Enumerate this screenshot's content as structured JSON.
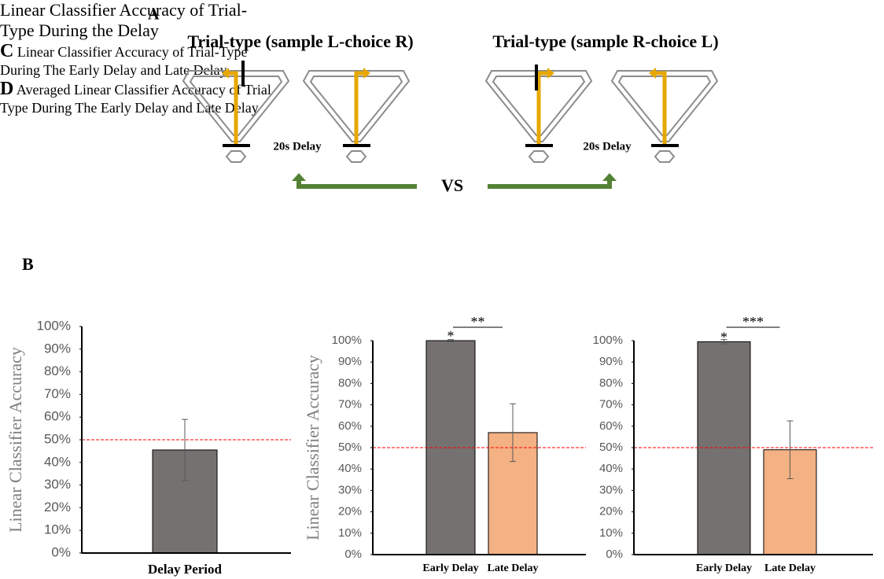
{
  "diagram": {
    "panel": "A",
    "titles": [
      "Trial-type (sample L-choice R)",
      "Trial-type (sample R-choice L)"
    ],
    "delay_labels": [
      "20s Delay",
      "20s Delay"
    ],
    "vs": "VS"
  },
  "chart_data": [
    {
      "type": "bar",
      "panel": "B",
      "title": "Linear Classifier Accuracy of Trial-Type During the Delay",
      "ylabel": "Linear Classifier Accuracy",
      "categories": [
        "Delay Period"
      ],
      "values": [
        45.5
      ],
      "errors": [
        13.5
      ],
      "colors": [
        "#767171"
      ],
      "chance_level": 50,
      "chance_color": "#ff0000",
      "ylim": [
        0,
        100
      ],
      "yticks": [
        {
          "value": 0,
          "label": "0%"
        },
        {
          "value": 10,
          "label": "10%"
        },
        {
          "value": 20,
          "label": "20%"
        },
        {
          "value": 30,
          "label": "30%"
        },
        {
          "value": 40,
          "label": "40%"
        },
        {
          "value": 50,
          "label": "50%"
        },
        {
          "value": 60,
          "label": "60%"
        },
        {
          "value": 70,
          "label": "70%"
        },
        {
          "value": 80,
          "label": "80%"
        },
        {
          "value": 90,
          "label": "90%"
        },
        {
          "value": 100,
          "label": "100%"
        }
      ]
    },
    {
      "type": "bar",
      "panel": "C",
      "title": "Linear Classifier Accuracy of Trial-Type During The Early Delay and Late Delay",
      "ylabel": "Linear Classifier Accuracy",
      "categories": [
        "Early Delay",
        "Late Delay"
      ],
      "values": [
        100,
        57
      ],
      "errors": [
        0.5,
        13.5
      ],
      "colors": [
        "#767171",
        "#f4b183"
      ],
      "chance_level": 50,
      "chance_color": "#ff0000",
      "bar_annotations": [
        "*",
        null
      ],
      "comparison_label": "**",
      "ylim": [
        0,
        100
      ],
      "yticks": [
        {
          "value": 0,
          "label": "0%"
        },
        {
          "value": 10,
          "label": "10%"
        },
        {
          "value": 20,
          "label": "20%"
        },
        {
          "value": 30,
          "label": "30%"
        },
        {
          "value": 40,
          "label": "40%"
        },
        {
          "value": 50,
          "label": "50%"
        },
        {
          "value": 60,
          "label": "60%"
        },
        {
          "value": 70,
          "label": "70%"
        },
        {
          "value": 80,
          "label": "80%"
        },
        {
          "value": 90,
          "label": "90%"
        },
        {
          "value": 100,
          "label": "100%"
        }
      ]
    },
    {
      "type": "bar",
      "panel": "D",
      "title": "Averaged Linear Classifier Accuracy of Trial Type During The Early Delay and Late Delay",
      "categories": [
        "Early Delay",
        "Late Delay"
      ],
      "values": [
        99.5,
        49
      ],
      "errors": [
        1,
        13.5
      ],
      "colors": [
        "#767171",
        "#f4b183"
      ],
      "chance_level": 50,
      "chance_color": "#ff0000",
      "bar_annotations": [
        "*",
        null
      ],
      "comparison_label": "***",
      "ylim": [
        0,
        100
      ],
      "yticks": [
        {
          "value": 0,
          "label": "0%"
        },
        {
          "value": 10,
          "label": "10%"
        },
        {
          "value": 20,
          "label": "20%"
        },
        {
          "value": 30,
          "label": "30%"
        },
        {
          "value": 40,
          "label": "40%"
        },
        {
          "value": 50,
          "label": "50%"
        },
        {
          "value": 60,
          "label": "60%"
        },
        {
          "value": 70,
          "label": "70%"
        },
        {
          "value": 80,
          "label": "80%"
        },
        {
          "value": 90,
          "label": "90%"
        },
        {
          "value": 100,
          "label": "100%"
        }
      ]
    }
  ]
}
